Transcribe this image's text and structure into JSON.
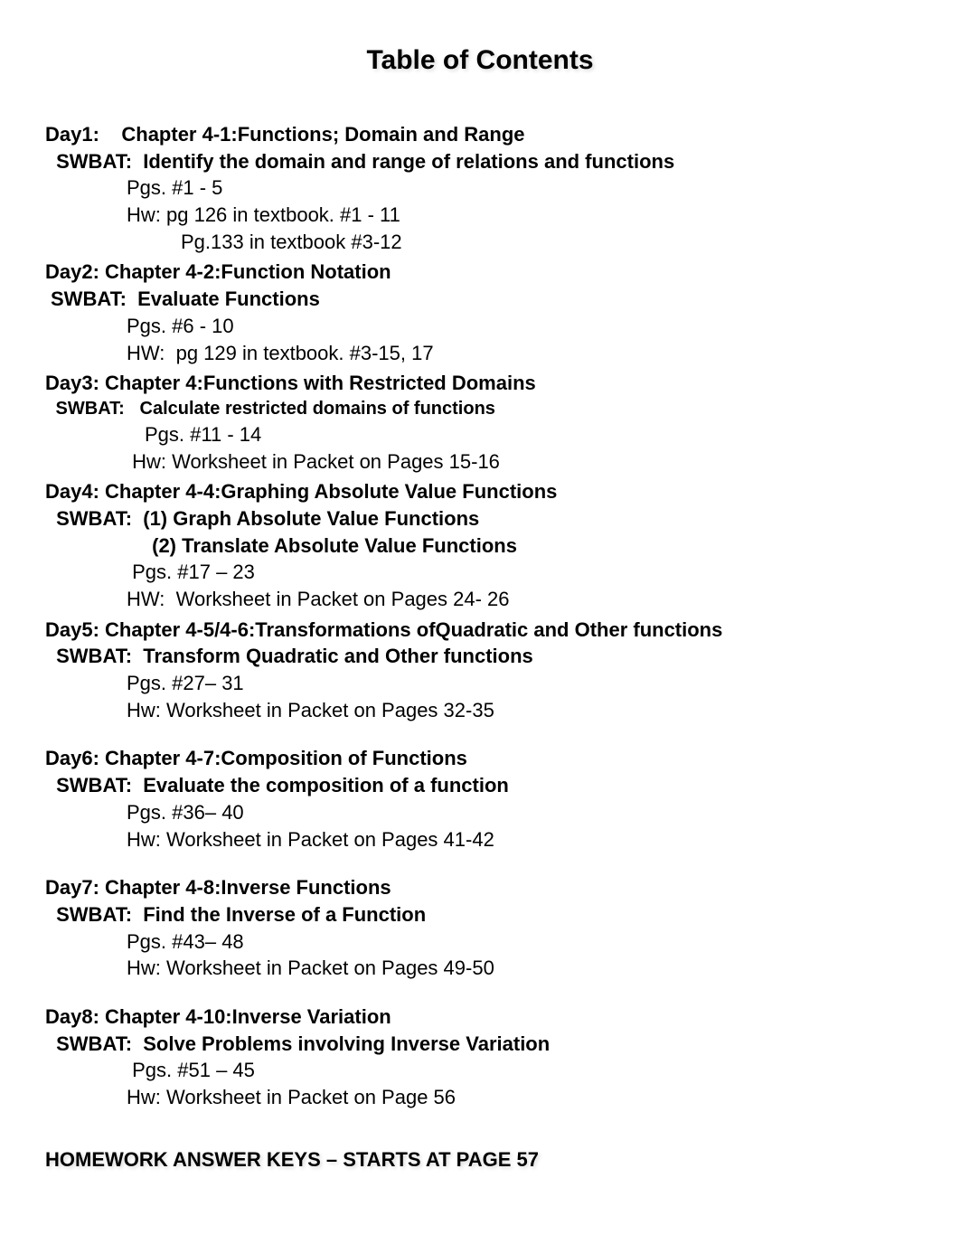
{
  "title": "Table of Contents",
  "days": [
    {
      "label": "Day1:    Chapter 4-1:Functions; Domain and Range",
      "swbat": " SWBAT:  Identify the domain and range of relations and functions",
      "lines": [
        {
          "cls": "detail-line",
          "text": "Pgs. #1 - 5"
        },
        {
          "cls": "detail-line",
          "text": "Hw: pg 126 in textbook. #1 - 11"
        },
        {
          "cls": "detail-line-2",
          "text": "Pg.133 in textbook #3-12"
        }
      ]
    },
    {
      "label": "Day2: Chapter 4-2:Function Notation",
      "swbat": "SWBAT:  Evaluate Functions",
      "lines": [
        {
          "cls": "detail-line",
          "text": "Pgs. #6 - 10"
        },
        {
          "cls": "detail-line",
          "text": "HW:  pg 129 in textbook. #3-15, 17"
        }
      ]
    },
    {
      "label": "Day3: Chapter 4:Functions with Restricted Domains",
      "swbat": " SWBAT:   Calculate restricted domains of functions",
      "swbatSmall": true,
      "lines": [
        {
          "cls": "detail-line-alt",
          "text": "Pgs. #11 - 14"
        },
        {
          "cls": "detail-line",
          "text": " Hw: Worksheet in Packet on Pages 15-16"
        }
      ]
    },
    {
      "label": "Day4: Chapter 4-4:Graphing Absolute Value Functions",
      "swbat": " SWBAT:  (1) Graph Absolute Value Functions",
      "sub": " (2) Translate Absolute Value Functions",
      "lines": [
        {
          "cls": "detail-line",
          "text": " Pgs. #17 – 23"
        },
        {
          "cls": "detail-line",
          "text": "HW:  Worksheet in Packet on Pages 24- 26"
        }
      ]
    },
    {
      "label": "Day5: Chapter 4-5/4-6:Transformations ofQuadratic and Other functions",
      "swbat": " SWBAT:  Transform Quadratic and Other functions",
      "lines": [
        {
          "cls": "detail-line",
          "text": "Pgs. #27– 31"
        },
        {
          "cls": "detail-line",
          "text": "Hw: Worksheet in Packet on Pages 32-35"
        }
      ],
      "gapAfter": "gap"
    },
    {
      "label": "Day6: Chapter 4-7:Composition of Functions",
      "swbat": " SWBAT:  Evaluate the composition of a function",
      "lines": [
        {
          "cls": "detail-line",
          "text": "Pgs. #36– 40"
        },
        {
          "cls": "detail-line",
          "text": "Hw: Worksheet in Packet on Pages 41-42"
        }
      ],
      "gapAfter": "gap"
    },
    {
      "label": "Day7: Chapter 4-8:Inverse Functions",
      "swbat": " SWBAT:  Find the Inverse of a Function",
      "lines": [
        {
          "cls": "detail-line",
          "text": "Pgs. #43– 48"
        },
        {
          "cls": "detail-line",
          "text": "Hw: Worksheet in Packet on Pages 49-50"
        }
      ],
      "gapAfter": "gap"
    },
    {
      "label": "Day8: Chapter 4-10:Inverse Variation",
      "swbat": " SWBAT:  Solve Problems involving Inverse Variation",
      "lines": [
        {
          "cls": "detail-line",
          "text": " Pgs. #51 – 45"
        },
        {
          "cls": "detail-line",
          "text": "Hw: Worksheet in Packet on Page 56"
        }
      ],
      "gapAfter": "gap-large"
    }
  ],
  "footer": "HOMEWORK ANSWER KEYS – STARTS AT PAGE 57"
}
